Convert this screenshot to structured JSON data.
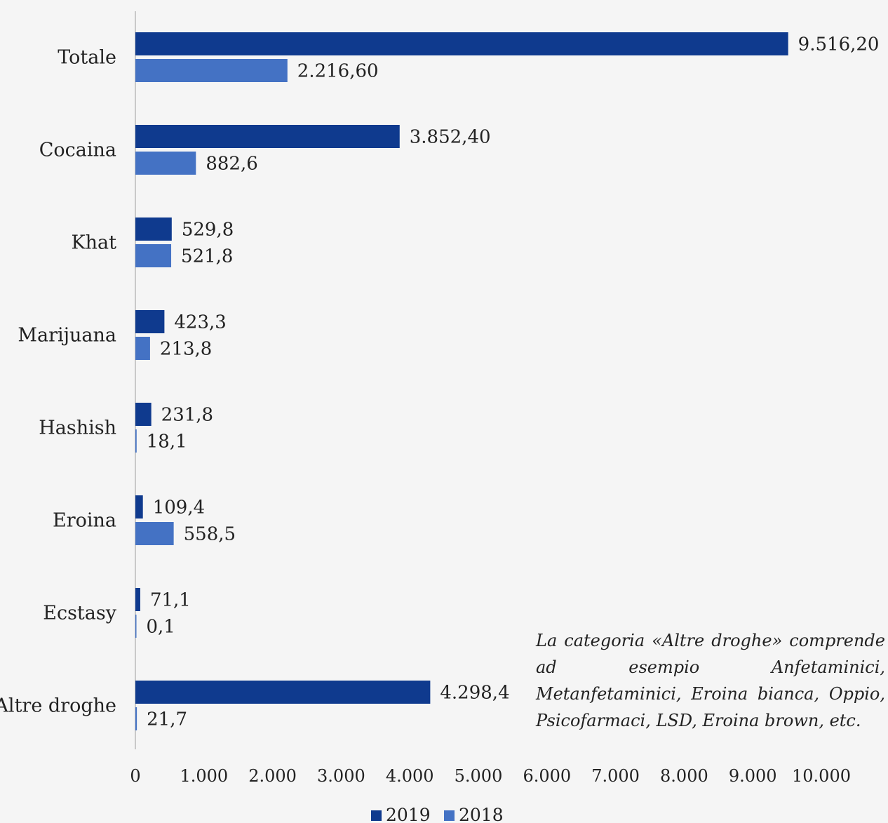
{
  "chart_data": {
    "type": "bar",
    "orientation": "horizontal",
    "categories": [
      "Totale",
      "Cocaina",
      "Khat",
      "Marijuana",
      "Hashish",
      "Eroina",
      "Ecstasy",
      "Altre droghe"
    ],
    "series": [
      {
        "name": "2019",
        "color": "#0f3a8e",
        "values": [
          9516.2,
          3852.4,
          529.8,
          423.3,
          231.8,
          109.4,
          71.1,
          4298.4
        ],
        "labels": [
          "9.516,20",
          "3.852,40",
          "529,8",
          "423,3",
          "231,8",
          "109,4",
          "71,1",
          "4.298,4"
        ]
      },
      {
        "name": "2018",
        "color": "#4472c4",
        "values": [
          2216.6,
          882.6,
          521.8,
          213.8,
          18.1,
          558.5,
          0.1,
          21.7
        ],
        "labels": [
          "2.216,60",
          "882,6",
          "521,8",
          "213,8",
          "18,1",
          "558,5",
          "0,1",
          "21,7"
        ]
      }
    ],
    "xlim": [
      0,
      10000
    ],
    "xticks": [
      0,
      1000,
      2000,
      3000,
      4000,
      5000,
      6000,
      7000,
      8000,
      9000,
      10000
    ],
    "xtick_labels": [
      "0",
      "1.000",
      "2.000",
      "3.000",
      "4.000",
      "5.000",
      "6.000",
      "7.000",
      "8.000",
      "9.000",
      "10.000"
    ],
    "grid": false,
    "legend_position": "bottom",
    "annotation": "La categoria «Altre droghe» comprende ad esempio Anfetaminici, Metanfetaminici, Eroina bianca, Oppio, Psicofarmaci, LSD, Eroina brown, etc."
  }
}
